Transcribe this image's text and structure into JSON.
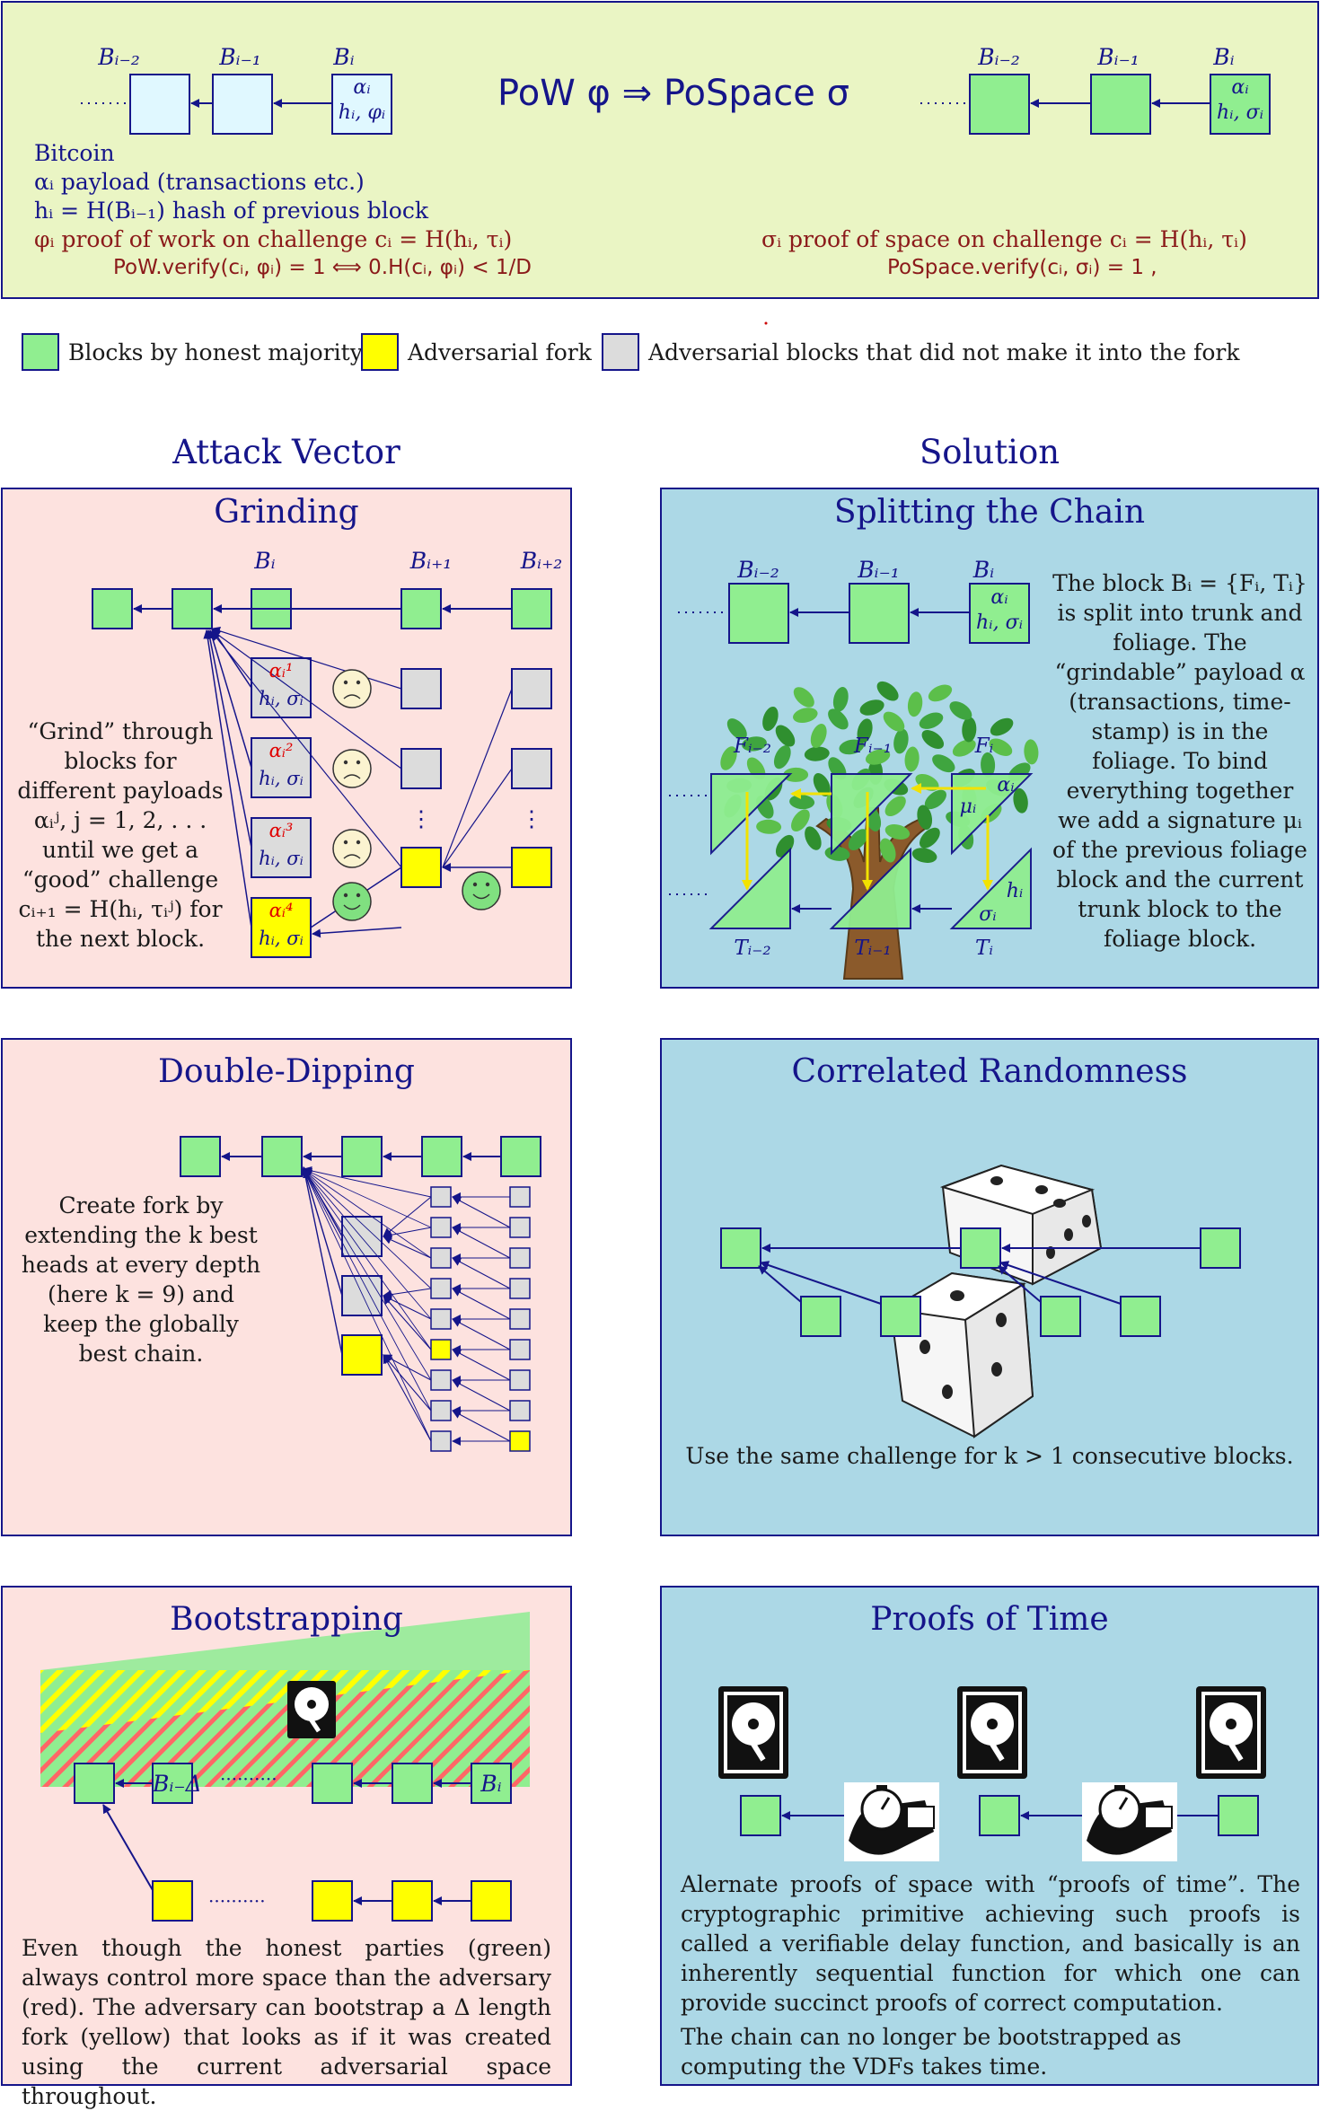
{
  "header": {
    "chain_labels_left": [
      "Bᵢ₋₂",
      "Bᵢ₋₁",
      "Bᵢ"
    ],
    "chain_labels_right": [
      "Bᵢ₋₂",
      "Bᵢ₋₁",
      "Bᵢ"
    ],
    "block_pow_alpha": "αᵢ",
    "block_pow_second": "hᵢ, φᵢ",
    "block_pos_alpha": "αᵢ",
    "block_pos_second": "hᵢ, σᵢ",
    "dots": "······",
    "center_formula": "PoW  φ ⇒ PoSpace  σ",
    "bitcoin": "Bitcoin",
    "line_alpha": "αᵢ  payload (transactions etc.)",
    "line_h": "hᵢ = H(Bᵢ₋₁)  hash of previous block",
    "line_phi": "φᵢ  proof of work on challenge cᵢ = H(hᵢ, τᵢ)",
    "line_pow_verify": "PoW.verify(cᵢ, φᵢ) = 1  ⟺  0.H(cᵢ, φᵢ) < 1/D",
    "line_sigma": "σᵢ proof of space on challenge cᵢ = H(hᵢ, τᵢ)",
    "line_pos_verify": "PoSpace.verify(cᵢ, σᵢ) = 1 ,"
  },
  "legend": [
    {
      "label": "Blocks by honest majority",
      "color": "#90ee90"
    },
    {
      "label": "Adversarial fork",
      "color": "#ffff00"
    },
    {
      "label": "Adversarial blocks that did not make it into the fork",
      "color": "#dcdcdc"
    }
  ],
  "sections": {
    "left": "Attack Vector",
    "right": "Solution"
  },
  "panels": {
    "grinding": {
      "title": "Grinding",
      "labels": [
        "Bᵢ",
        "Bᵢ₊₁",
        "Bᵢ₊₂"
      ],
      "alphas": [
        "αᵢ¹",
        "αᵢ²",
        "αᵢ³",
        "αᵢ⁴"
      ],
      "second": "hᵢ, σᵢ",
      "vdots": "⋮",
      "text": "“Grind” through blocks for different payloads αᵢʲ, j = 1, 2, . . . until we get a “good” challenge cᵢ₊₁ = H(hᵢ, τᵢʲ) for the next block."
    },
    "splitting": {
      "title": "Splitting the Chain",
      "labels": [
        "Bᵢ₋₂",
        "Bᵢ₋₁",
        "Bᵢ"
      ],
      "block_alpha": "αᵢ",
      "block_second": "hᵢ, σᵢ",
      "dots": "······",
      "foliage_labels": [
        "Fᵢ₋₂",
        "Fᵢ₋₁",
        "Fᵢ"
      ],
      "trunk_labels": [
        "Tᵢ₋₂",
        "Tᵢ₋₁",
        "Tᵢ"
      ],
      "fol_alpha": "αᵢ",
      "fol_mu": "μᵢ",
      "trunk_h": "hᵢ",
      "trunk_sigma": "σᵢ",
      "text": "The block Bᵢ = {Fᵢ, Tᵢ} is split into trunk and foliage. The “grindable” payload α (transactions, time-stamp) is in the foliage. To bind everything together we add a signature μᵢ of the previous foliage block and the current trunk block to the foliage block."
    },
    "double_dipping": {
      "title": "Double-Dipping",
      "text": "Create fork by extending the k best heads at every depth (here k = 9) and keep the globally best chain."
    },
    "correlated": {
      "title": "Correlated Randomness",
      "text": "Use the same challenge for k > 1 consecutive blocks."
    },
    "bootstrapping": {
      "title": "Bootstrapping",
      "label_bi_delta": "Bᵢ₋Δ",
      "label_bi": "Bᵢ",
      "dots": "··········",
      "text": "Even though the honest parties (green) always control more space than the adversary (red). The adversary can bootstrap a Δ length fork (yellow) that looks as if it was created using the current adversarial space throughout."
    },
    "proofs_of_time": {
      "title": "Proofs of Time",
      "text1": "Alernate proofs of space with “proofs of time”. The cryptographic primitive achieving such proofs is called a verifiable delay function, and basically is an inherently sequential function for which one can provide succinct proofs of correct computation.",
      "text2": "The chain can no longer be bootstrapped as computing the VDFs takes time."
    }
  }
}
